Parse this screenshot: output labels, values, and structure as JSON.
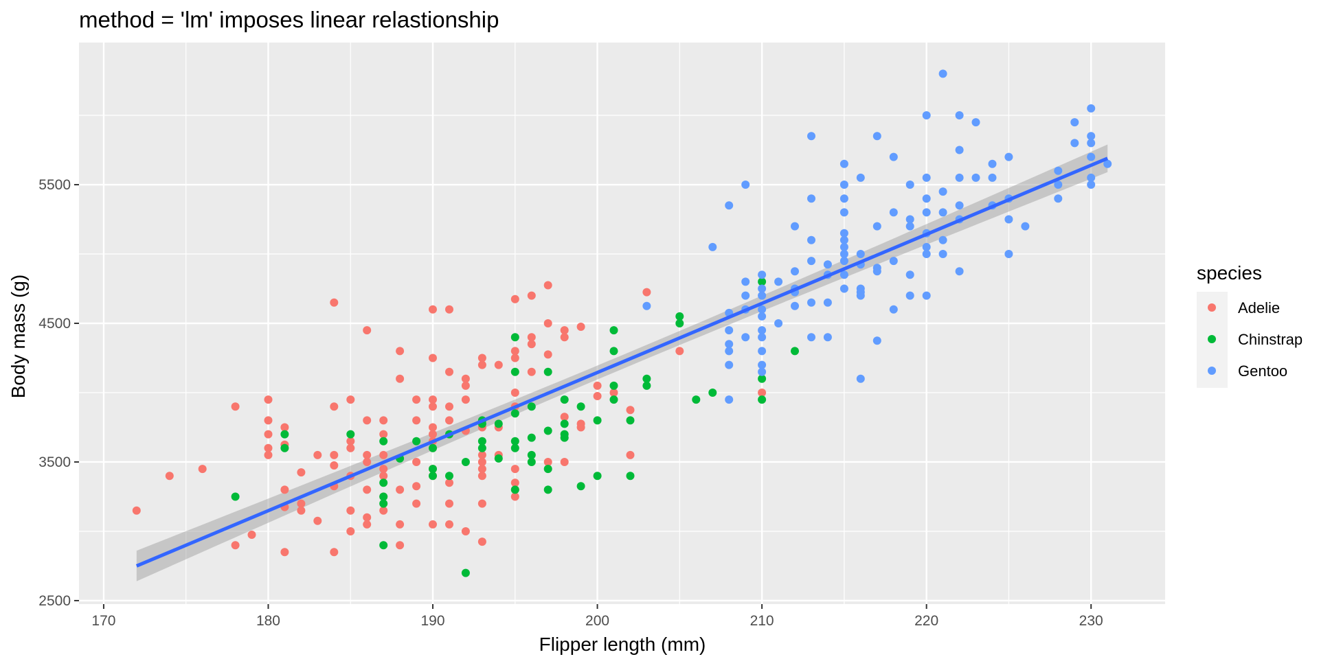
{
  "chart_data": {
    "type": "scatter",
    "title": "method = 'lm' imposes linear relastionship",
    "xlabel": "Flipper length (mm)",
    "ylabel": "Body mass (g)",
    "xlim": [
      168.5,
      234.5
    ],
    "ylim": [
      2475,
      6525
    ],
    "x_ticks": [
      170,
      180,
      190,
      200,
      210,
      220,
      230
    ],
    "x_tick_labels": [
      "170",
      "180",
      "190",
      "200",
      "210",
      "220",
      "230"
    ],
    "y_ticks": [
      2500,
      3500,
      4500,
      5500
    ],
    "y_tick_labels": [
      "2500",
      "3500",
      "4500",
      "5500"
    ],
    "grid": true,
    "legend": {
      "title": "species",
      "position": "right"
    },
    "series": [
      {
        "name": "Adelie",
        "color": "#F8766D",
        "points": [
          [
            172,
            3150
          ],
          [
            174,
            3400
          ],
          [
            176,
            3450
          ],
          [
            178,
            3900
          ],
          [
            178,
            2900
          ],
          [
            179,
            2975
          ],
          [
            180,
            3950
          ],
          [
            180,
            3800
          ],
          [
            180,
            3700
          ],
          [
            180,
            3600
          ],
          [
            180,
            3550
          ],
          [
            181,
            3750
          ],
          [
            181,
            3625
          ],
          [
            181,
            3300
          ],
          [
            181,
            3175
          ],
          [
            181,
            2850
          ],
          [
            182,
            3425
          ],
          [
            182,
            3200
          ],
          [
            182,
            3150
          ],
          [
            183,
            3550
          ],
          [
            183,
            3075
          ],
          [
            184,
            4650
          ],
          [
            184,
            3900
          ],
          [
            184,
            3550
          ],
          [
            184,
            3475
          ],
          [
            184,
            3325
          ],
          [
            184,
            2850
          ],
          [
            185,
            3950
          ],
          [
            185,
            3650
          ],
          [
            185,
            3600
          ],
          [
            185,
            3400
          ],
          [
            185,
            3150
          ],
          [
            185,
            3000
          ],
          [
            186,
            4450
          ],
          [
            186,
            3800
          ],
          [
            186,
            3550
          ],
          [
            186,
            3500
          ],
          [
            186,
            3300
          ],
          [
            186,
            3100
          ],
          [
            186,
            3050
          ],
          [
            187,
            3800
          ],
          [
            187,
            3700
          ],
          [
            187,
            3550
          ],
          [
            187,
            3450
          ],
          [
            187,
            3400
          ],
          [
            187,
            3250
          ],
          [
            187,
            3150
          ],
          [
            188,
            4300
          ],
          [
            188,
            4100
          ],
          [
            188,
            3300
          ],
          [
            188,
            3050
          ],
          [
            188,
            2900
          ],
          [
            189,
            3950
          ],
          [
            189,
            3800
          ],
          [
            189,
            3500
          ],
          [
            189,
            3325
          ],
          [
            189,
            3200
          ],
          [
            190,
            4600
          ],
          [
            190,
            4250
          ],
          [
            190,
            3950
          ],
          [
            190,
            3900
          ],
          [
            190,
            3750
          ],
          [
            190,
            3700
          ],
          [
            190,
            3650
          ],
          [
            190,
            3600
          ],
          [
            190,
            3450
          ],
          [
            190,
            3400
          ],
          [
            190,
            3050
          ],
          [
            191,
            4600
          ],
          [
            191,
            4150
          ],
          [
            191,
            3900
          ],
          [
            191,
            3800
          ],
          [
            191,
            3350
          ],
          [
            191,
            3200
          ],
          [
            191,
            3050
          ],
          [
            192,
            4100
          ],
          [
            192,
            4050
          ],
          [
            192,
            3950
          ],
          [
            192,
            3725
          ],
          [
            192,
            3000
          ],
          [
            193,
            4250
          ],
          [
            193,
            4200
          ],
          [
            193,
            3750
          ],
          [
            193,
            3550
          ],
          [
            193,
            3500
          ],
          [
            193,
            3450
          ],
          [
            193,
            3400
          ],
          [
            193,
            3200
          ],
          [
            193,
            2925
          ],
          [
            194,
            4200
          ],
          [
            194,
            3750
          ],
          [
            194,
            3550
          ],
          [
            195,
            4675
          ],
          [
            195,
            4300
          ],
          [
            195,
            4250
          ],
          [
            195,
            4000
          ],
          [
            195,
            3900
          ],
          [
            195,
            3450
          ],
          [
            195,
            3350
          ],
          [
            195,
            3300
          ],
          [
            195,
            3250
          ],
          [
            196,
            4700
          ],
          [
            196,
            4400
          ],
          [
            196,
            4350
          ],
          [
            196,
            4150
          ],
          [
            197,
            4775
          ],
          [
            197,
            4500
          ],
          [
            197,
            4275
          ],
          [
            197,
            3500
          ],
          [
            198,
            4450
          ],
          [
            198,
            4400
          ],
          [
            198,
            3825
          ],
          [
            198,
            3500
          ],
          [
            199,
            4475
          ],
          [
            199,
            3775
          ],
          [
            199,
            3750
          ],
          [
            200,
            4050
          ],
          [
            200,
            3975
          ],
          [
            201,
            4000
          ],
          [
            202,
            3875
          ],
          [
            202,
            3550
          ],
          [
            203,
            4725
          ],
          [
            205,
            4300
          ],
          [
            210,
            4000
          ]
        ]
      },
      {
        "name": "Chinstrap",
        "color": "#00BA38",
        "points": [
          [
            178,
            3250
          ],
          [
            181,
            3700
          ],
          [
            181,
            3600
          ],
          [
            185,
            3700
          ],
          [
            187,
            3650
          ],
          [
            187,
            3350
          ],
          [
            187,
            3250
          ],
          [
            187,
            3200
          ],
          [
            187,
            2900
          ],
          [
            188,
            3525
          ],
          [
            189,
            3650
          ],
          [
            190,
            3600
          ],
          [
            190,
            3450
          ],
          [
            190,
            3400
          ],
          [
            191,
            3700
          ],
          [
            191,
            3400
          ],
          [
            192,
            3500
          ],
          [
            192,
            2700
          ],
          [
            193,
            3800
          ],
          [
            193,
            3650
          ],
          [
            193,
            3775
          ],
          [
            193,
            3600
          ],
          [
            194,
            3775
          ],
          [
            194,
            3525
          ],
          [
            195,
            4400
          ],
          [
            195,
            4150
          ],
          [
            195,
            3850
          ],
          [
            195,
            3650
          ],
          [
            195,
            3600
          ],
          [
            195,
            3300
          ],
          [
            196,
            3900
          ],
          [
            196,
            3675
          ],
          [
            196,
            3550
          ],
          [
            196,
            3500
          ],
          [
            197,
            4150
          ],
          [
            197,
            3725
          ],
          [
            197,
            3450
          ],
          [
            197,
            3300
          ],
          [
            198,
            3950
          ],
          [
            198,
            3775
          ],
          [
            198,
            3700
          ],
          [
            198,
            3675
          ],
          [
            199,
            3900
          ],
          [
            199,
            3325
          ],
          [
            200,
            3800
          ],
          [
            200,
            3400
          ],
          [
            201,
            4450
          ],
          [
            201,
            4300
          ],
          [
            201,
            4050
          ],
          [
            201,
            3950
          ],
          [
            202,
            3800
          ],
          [
            202,
            3400
          ],
          [
            203,
            4100
          ],
          [
            203,
            4050
          ],
          [
            205,
            4550
          ],
          [
            205,
            4500
          ],
          [
            206,
            3950
          ],
          [
            207,
            4000
          ],
          [
            210,
            4800
          ],
          [
            210,
            4100
          ],
          [
            210,
            3950
          ],
          [
            212,
            4300
          ]
        ]
      },
      {
        "name": "Gentoo",
        "color": "#619CFF",
        "points": [
          [
            203,
            4625
          ],
          [
            207,
            5050
          ],
          [
            208,
            5350
          ],
          [
            208,
            4575
          ],
          [
            208,
            4450
          ],
          [
            208,
            4350
          ],
          [
            208,
            4300
          ],
          [
            208,
            4200
          ],
          [
            208,
            3950
          ],
          [
            209,
            5500
          ],
          [
            209,
            4800
          ],
          [
            209,
            4700
          ],
          [
            209,
            4600
          ],
          [
            209,
            4400
          ],
          [
            210,
            4850
          ],
          [
            210,
            4750
          ],
          [
            210,
            4700
          ],
          [
            210,
            4600
          ],
          [
            210,
            4550
          ],
          [
            210,
            4450
          ],
          [
            210,
            4400
          ],
          [
            210,
            4300
          ],
          [
            210,
            4200
          ],
          [
            210,
            4150
          ],
          [
            211,
            4800
          ],
          [
            211,
            4500
          ],
          [
            212,
            5200
          ],
          [
            212,
            4875
          ],
          [
            212,
            4750
          ],
          [
            212,
            4725
          ],
          [
            212,
            4625
          ],
          [
            213,
            5850
          ],
          [
            213,
            5400
          ],
          [
            213,
            5100
          ],
          [
            213,
            4950
          ],
          [
            213,
            4650
          ],
          [
            213,
            4400
          ],
          [
            214,
            4925
          ],
          [
            214,
            4850
          ],
          [
            214,
            4650
          ],
          [
            214,
            4400
          ],
          [
            215,
            5650
          ],
          [
            215,
            5500
          ],
          [
            215,
            5400
          ],
          [
            215,
            5300
          ],
          [
            215,
            5150
          ],
          [
            215,
            5100
          ],
          [
            215,
            5050
          ],
          [
            215,
            5000
          ],
          [
            215,
            4950
          ],
          [
            215,
            4850
          ],
          [
            215,
            4750
          ],
          [
            216,
            5550
          ],
          [
            216,
            5000
          ],
          [
            216,
            4925
          ],
          [
            216,
            4750
          ],
          [
            216,
            4725
          ],
          [
            216,
            4700
          ],
          [
            216,
            4100
          ],
          [
            217,
            5850
          ],
          [
            217,
            5200
          ],
          [
            217,
            4900
          ],
          [
            217,
            4875
          ],
          [
            217,
            4375
          ],
          [
            218,
            5700
          ],
          [
            218,
            5300
          ],
          [
            218,
            4950
          ],
          [
            218,
            4600
          ],
          [
            219,
            5500
          ],
          [
            219,
            5250
          ],
          [
            219,
            5200
          ],
          [
            219,
            4850
          ],
          [
            219,
            4700
          ],
          [
            220,
            6000
          ],
          [
            220,
            5550
          ],
          [
            220,
            5400
          ],
          [
            220,
            5300
          ],
          [
            220,
            5150
          ],
          [
            220,
            5050
          ],
          [
            220,
            5000
          ],
          [
            220,
            4700
          ],
          [
            221,
            6300
          ],
          [
            221,
            5450
          ],
          [
            221,
            5300
          ],
          [
            221,
            5100
          ],
          [
            221,
            5000
          ],
          [
            222,
            6000
          ],
          [
            222,
            5750
          ],
          [
            222,
            5550
          ],
          [
            222,
            5350
          ],
          [
            222,
            5250
          ],
          [
            222,
            4875
          ],
          [
            223,
            5950
          ],
          [
            223,
            5550
          ],
          [
            224,
            5650
          ],
          [
            224,
            5550
          ],
          [
            224,
            5350
          ],
          [
            225,
            5700
          ],
          [
            225,
            5400
          ],
          [
            225,
            5250
          ],
          [
            225,
            5000
          ],
          [
            226,
            5200
          ],
          [
            228,
            5600
          ],
          [
            228,
            5500
          ],
          [
            228,
            5400
          ],
          [
            229,
            5950
          ],
          [
            229,
            5800
          ],
          [
            230,
            6050
          ],
          [
            230,
            5850
          ],
          [
            230,
            5800
          ],
          [
            230,
            5700
          ],
          [
            230,
            5550
          ],
          [
            230,
            5500
          ],
          [
            231,
            5650
          ]
        ]
      }
    ],
    "fit": {
      "method": "lm",
      "color": "#3366FF",
      "x_range": [
        172,
        231
      ],
      "y_at_range": [
        2750,
        5690
      ],
      "ci_halfwidth_at_range": [
        110,
        100
      ],
      "ci_halfwidth_at_center": 50
    }
  }
}
